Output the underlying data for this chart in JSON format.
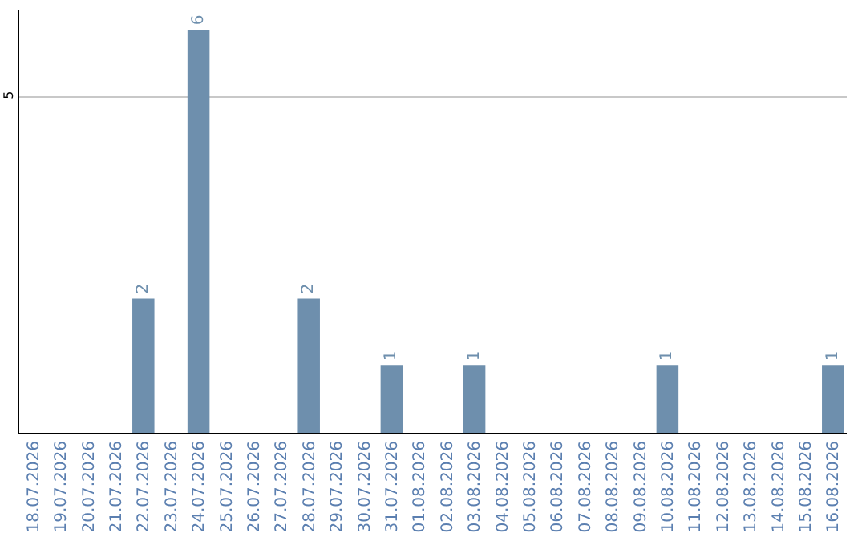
{
  "chart_data": {
    "type": "bar",
    "categories": [
      "18.07.2026",
      "19.07.2026",
      "20.07.2026",
      "21.07.2026",
      "22.07.2026",
      "23.07.2026",
      "24.07.2026",
      "25.07.2026",
      "26.07.2026",
      "27.07.2026",
      "28.07.2026",
      "29.07.2026",
      "30.07.2026",
      "31.07.2026",
      "01.08.2026",
      "02.08.2026",
      "03.08.2026",
      "04.08.2026",
      "05.08.2026",
      "06.08.2026",
      "07.08.2026",
      "08.08.2026",
      "09.08.2026",
      "10.08.2026",
      "11.08.2026",
      "12.08.2026",
      "13.08.2026",
      "14.08.2026",
      "15.08.2026",
      "16.08.2026"
    ],
    "values": [
      0,
      0,
      0,
      0,
      2,
      0,
      6,
      0,
      0,
      0,
      2,
      0,
      0,
      1,
      0,
      0,
      1,
      0,
      0,
      0,
      0,
      0,
      0,
      1,
      0,
      0,
      0,
      0,
      0,
      1
    ],
    "value_labels": [
      null,
      null,
      null,
      null,
      "2",
      null,
      "6",
      null,
      null,
      null,
      "2",
      null,
      null,
      "1",
      null,
      null,
      "1",
      null,
      null,
      null,
      null,
      null,
      null,
      "1",
      null,
      null,
      null,
      null,
      null,
      "1"
    ],
    "color": "#6e8fad",
    "ylim": [
      0,
      6.3
    ],
    "yticks": [
      5
    ],
    "grid": "y"
  }
}
